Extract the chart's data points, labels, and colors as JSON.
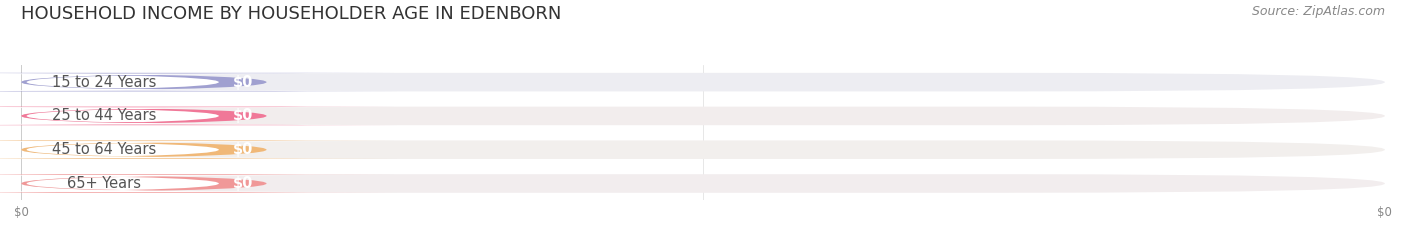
{
  "title": "HOUSEHOLD INCOME BY HOUSEHOLDER AGE IN EDENBORN",
  "source": "Source: ZipAtlas.com",
  "categories": [
    "15 to 24 Years",
    "25 to 44 Years",
    "45 to 64 Years",
    "65+ Years"
  ],
  "values": [
    0,
    0,
    0,
    0
  ],
  "bar_colors": [
    "#a0a0d0",
    "#f07898",
    "#f0b878",
    "#f09898"
  ],
  "row_bg_colors": [
    "#ededf2",
    "#f2eded",
    "#f2efed",
    "#f2edee"
  ],
  "background_color": "#ffffff",
  "title_fontsize": 13,
  "label_fontsize": 10.5,
  "source_fontsize": 9,
  "value_fontsize": 10.5
}
